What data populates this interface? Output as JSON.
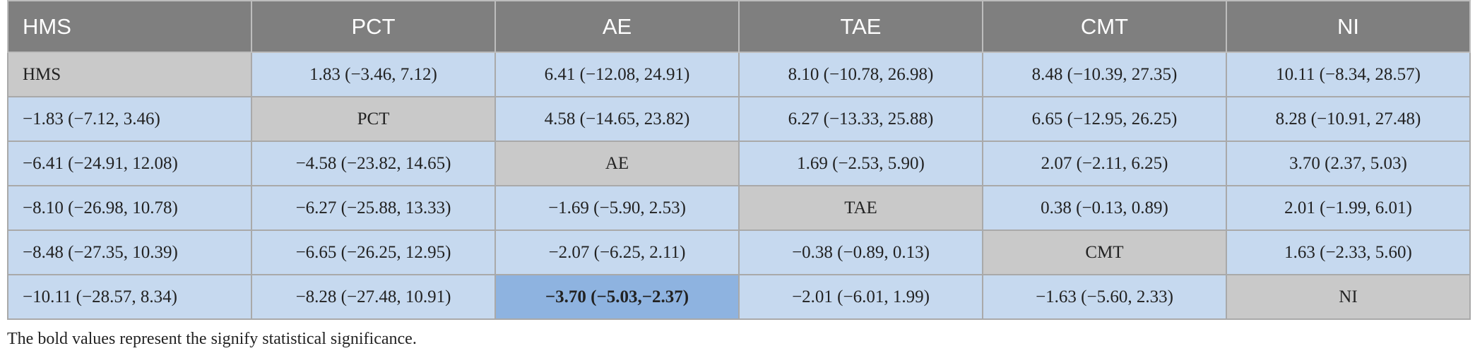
{
  "table": {
    "headers": [
      "HMS",
      "PCT",
      "AE",
      "TAE",
      "CMT",
      "NI"
    ],
    "rows": [
      [
        "HMS",
        "1.83 (−3.46, 7.12)",
        "6.41 (−12.08, 24.91)",
        "8.10 (−10.78, 26.98)",
        "8.48 (−10.39, 27.35)",
        "10.11 (−8.34, 28.57)"
      ],
      [
        "−1.83 (−7.12, 3.46)",
        "PCT",
        "4.58 (−14.65, 23.82)",
        "6.27 (−13.33, 25.88)",
        "6.65 (−12.95, 26.25)",
        "8.28 (−10.91, 27.48)"
      ],
      [
        "−6.41 (−24.91, 12.08)",
        "−4.58 (−23.82, 14.65)",
        "AE",
        "1.69 (−2.53, 5.90)",
        "2.07 (−2.11, 6.25)",
        "3.70 (2.37, 5.03)"
      ],
      [
        "−8.10 (−26.98, 10.78)",
        "−6.27 (−25.88, 13.33)",
        "−1.69 (−5.90, 2.53)",
        "TAE",
        "0.38 (−0.13, 0.89)",
        "2.01 (−1.99, 6.01)"
      ],
      [
        "−8.48 (−27.35, 10.39)",
        "−6.65 (−26.25, 12.95)",
        "−2.07 (−6.25, 2.11)",
        "−0.38 (−0.89, 0.13)",
        "CMT",
        "1.63 (−2.33, 5.60)"
      ],
      [
        "−10.11 (−28.57, 8.34)",
        "−8.28 (−27.48, 10.91)",
        "−3.70 (−5.03,−2.37)",
        "−2.01 (−6.01, 1.99)",
        "−1.63 (−5.60, 2.33)",
        "NI"
      ]
    ],
    "significant_cells": [
      [
        5,
        2
      ]
    ]
  },
  "footnote": "The bold values represent the signify statistical significance.",
  "colors": {
    "header_bg": "#7f7f7f",
    "cell_bg": "#c6d9ef",
    "diagonal_bg": "#c9c9c9",
    "significant_bg": "#8eb3e0"
  }
}
